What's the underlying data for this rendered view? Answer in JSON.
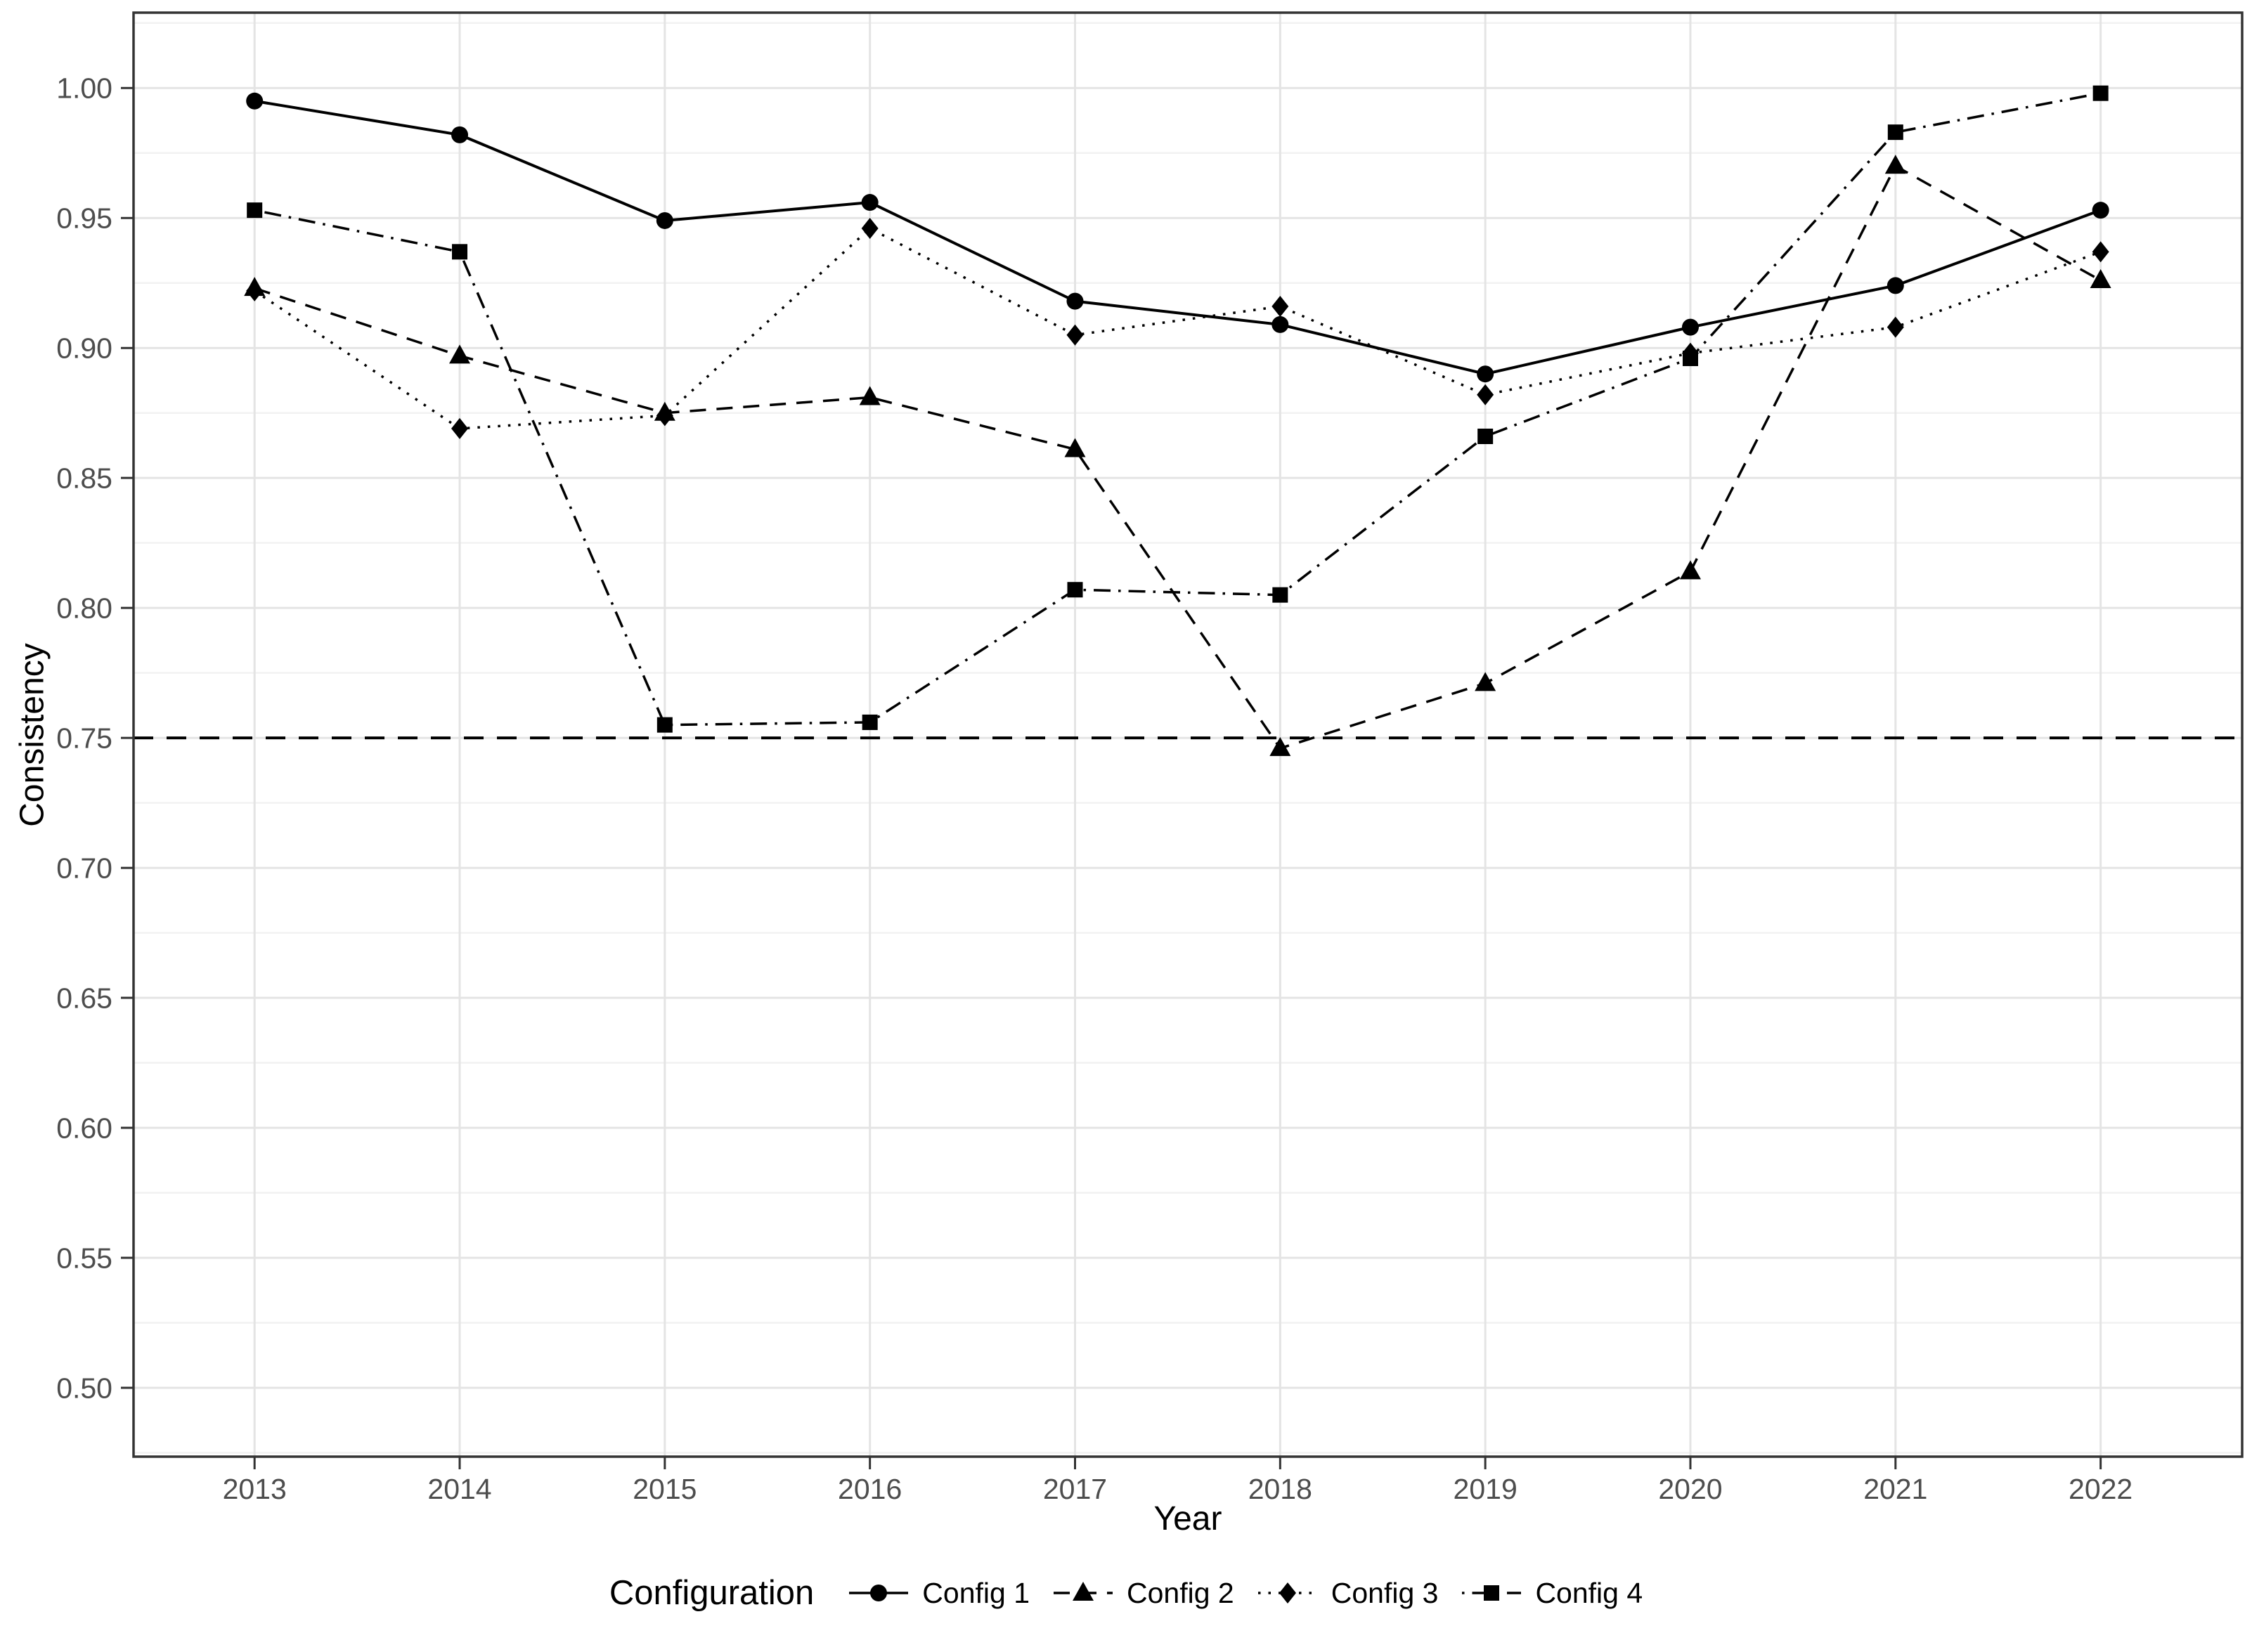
{
  "chart_data": {
    "type": "line",
    "title": "",
    "xlabel": "Year",
    "ylabel": "Consistency",
    "categories": [
      2013,
      2014,
      2015,
      2016,
      2017,
      2018,
      2019,
      2020,
      2021,
      2022
    ],
    "series": [
      {
        "name": "Config 1",
        "linetype": "solid",
        "marker": "circle",
        "values": [
          0.995,
          0.982,
          0.949,
          0.956,
          0.918,
          0.909,
          0.89,
          0.908,
          0.924,
          0.953
        ]
      },
      {
        "name": "Config 2",
        "linetype": "dashed",
        "marker": "triangle",
        "values": [
          0.923,
          0.897,
          0.875,
          0.881,
          0.861,
          0.746,
          0.771,
          0.814,
          0.97,
          0.926
        ]
      },
      {
        "name": "Config 3",
        "linetype": "dotted",
        "marker": "diamond",
        "values": [
          0.922,
          0.869,
          0.874,
          0.946,
          0.905,
          0.916,
          0.882,
          0.898,
          0.908,
          0.937
        ]
      },
      {
        "name": "Config 4",
        "linetype": "dotdash",
        "marker": "square",
        "values": [
          0.953,
          0.937,
          0.755,
          0.756,
          0.807,
          0.805,
          0.866,
          0.896,
          0.983,
          0.998
        ]
      }
    ],
    "threshold": {
      "value": 0.75,
      "linetype": "dashed"
    },
    "y_ticks": [
      0.5,
      0.55,
      0.6,
      0.65,
      0.7,
      0.75,
      0.8,
      0.85,
      0.9,
      0.95,
      1.0
    ],
    "y_tick_labels": [
      "0.50",
      "0.55",
      "0.60",
      "0.65",
      "0.70",
      "0.75",
      "0.80",
      "0.85",
      "0.90",
      "0.95",
      "1.00"
    ],
    "x_tick_labels": [
      "2013",
      "2014",
      "2015",
      "2016",
      "2017",
      "2018",
      "2019",
      "2020",
      "2021",
      "2022"
    ],
    "ylim": [
      0.4735,
      1.029
    ],
    "xlim": [
      2012.41,
      2022.69
    ],
    "grid": "major-x, major-y, minor-y",
    "legend_position": "bottom"
  },
  "legend": {
    "title": "Configuration"
  },
  "colors": {
    "series_line": "#000000",
    "grid_major": "#e4e4e4",
    "grid_minor": "#f2f2f2",
    "panel_border": "#333333",
    "axis_text": "#4d4d4d",
    "tick_mark": "#333333",
    "background": "#ffffff"
  }
}
